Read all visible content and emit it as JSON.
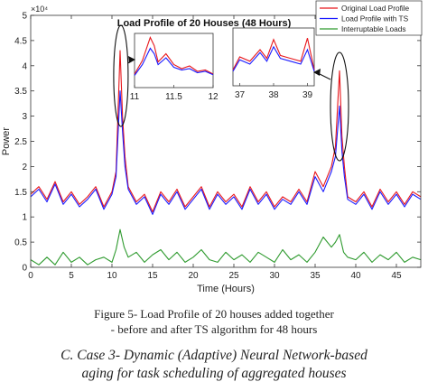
{
  "chart_data": {
    "type": "line",
    "title": "Load Profile of 20 Houses (48 Hours)",
    "xlabel": "Time (Hours)",
    "ylabel": "Power",
    "y_scale_label": "×10⁴",
    "xlim": [
      0,
      48
    ],
    "ylim": [
      0,
      5
    ],
    "x_ticks": [
      "0",
      "5",
      "10",
      "15",
      "20",
      "25",
      "30",
      "35",
      "40",
      "45"
    ],
    "y_ticks": [
      "0",
      "0.5",
      "1",
      "1.5",
      "2",
      "2.5",
      "3",
      "3.5",
      "4",
      "4.5",
      "5"
    ],
    "legend_position": "top-right",
    "series": [
      {
        "name": "Original Load Profile",
        "color": "#e8161b",
        "x": [
          0,
          1,
          2,
          3,
          4,
          5,
          6,
          7,
          8,
          9,
          10,
          10.5,
          11,
          11.3,
          11.6,
          12,
          13,
          14,
          15,
          16,
          17,
          18,
          19,
          20,
          21,
          22,
          23,
          24,
          25,
          26,
          27,
          28,
          29,
          30,
          31,
          32,
          33,
          34,
          35,
          36,
          37,
          37.5,
          38,
          38.3,
          38.6,
          39,
          40,
          41,
          42,
          43,
          44,
          45,
          46,
          47,
          48
        ],
        "values": [
          1.45,
          1.6,
          1.35,
          1.7,
          1.3,
          1.5,
          1.25,
          1.4,
          1.6,
          1.2,
          1.5,
          1.9,
          4.3,
          3.0,
          2.2,
          1.6,
          1.3,
          1.45,
          1.1,
          1.5,
          1.3,
          1.55,
          1.2,
          1.4,
          1.6,
          1.2,
          1.5,
          1.3,
          1.45,
          1.2,
          1.6,
          1.3,
          1.5,
          1.2,
          1.4,
          1.3,
          1.55,
          1.3,
          1.9,
          1.6,
          2.0,
          2.4,
          3.9,
          2.6,
          2.0,
          1.4,
          1.3,
          1.5,
          1.2,
          1.55,
          1.3,
          1.5,
          1.25,
          1.5,
          1.4
        ]
      },
      {
        "name": "Load Profile with TS",
        "color": "#1a1aff",
        "x": [
          0,
          1,
          2,
          3,
          4,
          5,
          6,
          7,
          8,
          9,
          10,
          10.5,
          11,
          11.3,
          11.6,
          12,
          13,
          14,
          15,
          16,
          17,
          18,
          19,
          20,
          21,
          22,
          23,
          24,
          25,
          26,
          27,
          28,
          29,
          30,
          31,
          32,
          33,
          34,
          35,
          36,
          37,
          37.5,
          38,
          38.3,
          38.6,
          39,
          40,
          41,
          42,
          43,
          44,
          45,
          46,
          47,
          48
        ],
        "values": [
          1.4,
          1.55,
          1.3,
          1.65,
          1.25,
          1.45,
          1.2,
          1.35,
          1.55,
          1.15,
          1.45,
          1.8,
          3.5,
          2.7,
          2.0,
          1.55,
          1.25,
          1.4,
          1.05,
          1.45,
          1.25,
          1.5,
          1.15,
          1.35,
          1.55,
          1.15,
          1.45,
          1.25,
          1.4,
          1.15,
          1.55,
          1.25,
          1.45,
          1.15,
          1.35,
          1.25,
          1.5,
          1.25,
          1.8,
          1.5,
          1.9,
          2.2,
          3.2,
          2.3,
          1.8,
          1.35,
          1.25,
          1.45,
          1.15,
          1.5,
          1.25,
          1.45,
          1.2,
          1.45,
          1.35
        ]
      },
      {
        "name": "Interruptable Loads",
        "color": "#2e9a2e",
        "x": [
          0,
          1,
          2,
          3,
          4,
          5,
          6,
          7,
          8,
          9,
          10,
          10.5,
          11,
          11.5,
          12,
          13,
          14,
          15,
          16,
          17,
          18,
          19,
          20,
          21,
          22,
          23,
          24,
          25,
          26,
          27,
          28,
          29,
          30,
          31,
          32,
          33,
          34,
          35,
          36,
          37,
          37.5,
          38,
          38.5,
          39,
          40,
          41,
          42,
          43,
          44,
          45,
          46,
          47,
          48
        ],
        "values": [
          0.15,
          0.05,
          0.2,
          0.05,
          0.3,
          0.1,
          0.2,
          0.05,
          0.15,
          0.2,
          0.1,
          0.35,
          0.75,
          0.4,
          0.2,
          0.3,
          0.1,
          0.25,
          0.35,
          0.15,
          0.3,
          0.1,
          0.2,
          0.35,
          0.15,
          0.1,
          0.3,
          0.15,
          0.25,
          0.1,
          0.3,
          0.2,
          0.1,
          0.35,
          0.15,
          0.25,
          0.1,
          0.3,
          0.6,
          0.4,
          0.5,
          0.65,
          0.3,
          0.2,
          0.15,
          0.3,
          0.1,
          0.25,
          0.15,
          0.3,
          0.1,
          0.2,
          0.15
        ]
      }
    ],
    "insets": [
      {
        "x_ticks": [
          "11",
          "11.5",
          "12"
        ],
        "xlim": [
          11,
          12
        ],
        "ylim": [
          0.5,
          4.5
        ],
        "series": [
          {
            "name": "Original Load Profile",
            "x": [
              11,
              11.1,
              11.2,
              11.25,
              11.3,
              11.4,
              11.5,
              11.6,
              11.7,
              11.8,
              11.9,
              12
            ],
            "values": [
              1.5,
              2.5,
              4.2,
              3.6,
              2.4,
              3.0,
              2.2,
              1.9,
              2.1,
              1.7,
              1.8,
              1.5
            ]
          },
          {
            "name": "Load Profile with TS",
            "x": [
              11,
              11.1,
              11.2,
              11.25,
              11.3,
              11.4,
              11.5,
              11.6,
              11.7,
              11.8,
              11.9,
              12
            ],
            "values": [
              1.4,
              2.2,
              3.4,
              3.0,
              2.2,
              2.7,
              2.0,
              1.8,
              1.9,
              1.6,
              1.7,
              1.45
            ]
          }
        ]
      },
      {
        "x_ticks": [
          "37",
          "38",
          "39"
        ],
        "xlim": [
          36.8,
          39.2
        ],
        "ylim": [
          0.5,
          4.5
        ],
        "series": [
          {
            "name": "Original Load Profile",
            "x": [
              36.8,
              37,
              37.3,
              37.6,
              37.8,
              38,
              38.2,
              38.5,
              38.8,
              39,
              39.2
            ],
            "values": [
              1.6,
              2.5,
              2.2,
              3.0,
              2.4,
              3.7,
              2.6,
              2.4,
              2.2,
              3.8,
              1.6
            ]
          },
          {
            "name": "Load Profile with TS",
            "x": [
              36.8,
              37,
              37.3,
              37.6,
              37.8,
              38,
              38.2,
              38.5,
              38.8,
              39,
              39.2
            ],
            "values": [
              1.5,
              2.3,
              2.0,
              2.8,
              2.2,
              3.2,
              2.4,
              2.2,
              2.0,
              3.0,
              1.5
            ]
          }
        ]
      }
    ]
  },
  "caption": {
    "line1": "Figure 5- Load Profile of 20 houses added together",
    "line2": "- before and after TS algorithm for 48 hours"
  },
  "section_heading": "C.   Case 3- Dynamic (Adaptive) Neural Network-based",
  "section_heading_cont": "aging for task scheduling of aggregated houses"
}
